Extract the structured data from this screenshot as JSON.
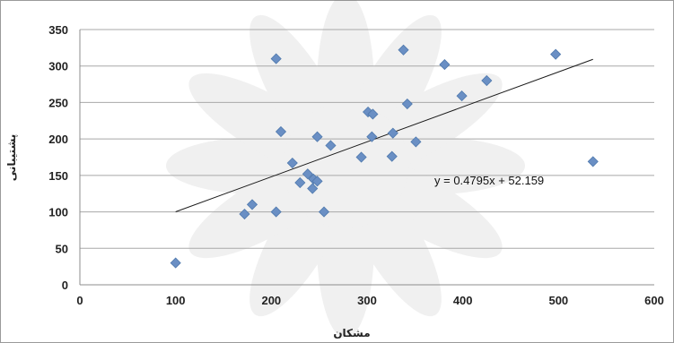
{
  "chart_data": {
    "type": "scatter",
    "xlabel": "مشکان",
    "ylabel": "پشتیبانی",
    "xlim": [
      0,
      600
    ],
    "ylim": [
      0,
      350
    ],
    "x_ticks": [
      "0",
      "100",
      "200",
      "300",
      "400",
      "500",
      "600"
    ],
    "y_ticks": [
      "0",
      "50",
      "100",
      "150",
      "200",
      "250",
      "300",
      "350"
    ],
    "grid": "horizontal",
    "marker": "diamond",
    "marker_color": "#6a8fc4",
    "series": [
      {
        "points": [
          [
            100,
            30
          ],
          [
            172,
            97
          ],
          [
            180,
            110
          ],
          [
            205,
            310
          ],
          [
            205,
            100
          ],
          [
            210,
            210
          ],
          [
            222,
            167
          ],
          [
            230,
            140
          ],
          [
            238,
            152
          ],
          [
            243,
            132
          ],
          [
            244,
            145
          ],
          [
            248,
            142
          ],
          [
            248,
            203
          ],
          [
            255,
            100
          ],
          [
            262,
            191
          ],
          [
            294,
            175
          ],
          [
            301,
            237
          ],
          [
            305,
            203
          ],
          [
            306,
            234
          ],
          [
            326,
            176
          ],
          [
            327,
            208
          ],
          [
            338,
            322
          ],
          [
            342,
            248
          ],
          [
            351,
            196
          ],
          [
            381,
            302
          ],
          [
            399,
            259
          ],
          [
            425,
            280
          ],
          [
            497,
            316
          ],
          [
            536,
            169
          ]
        ]
      }
    ],
    "trendline": {
      "slope": 0.4795,
      "intercept": 52.159,
      "x_range": [
        100,
        536
      ]
    },
    "annotation": "y = 0.4795x + 52.159"
  }
}
